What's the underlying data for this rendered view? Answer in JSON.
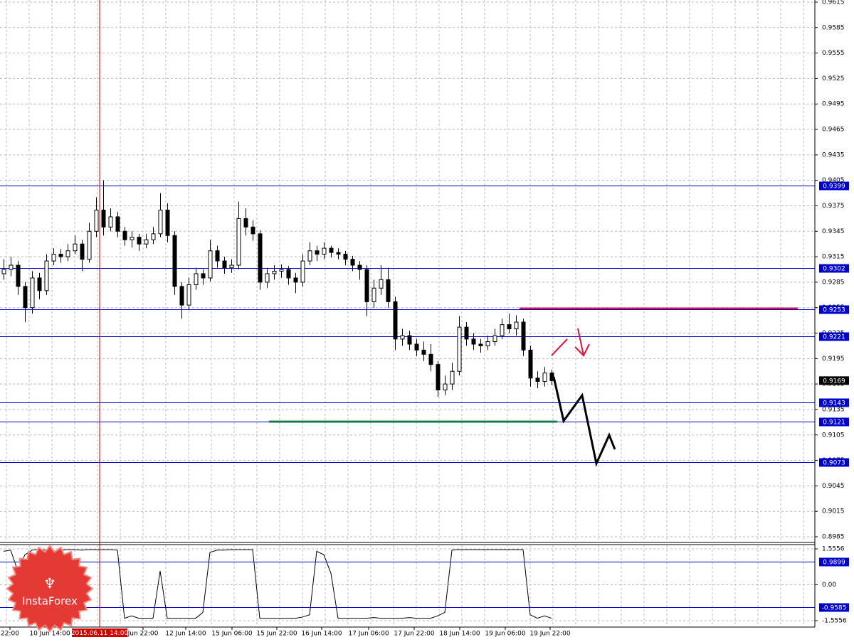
{
  "chart_data": {
    "type": "candlestick",
    "logo": "InstaForex",
    "cursor_label": "2015.06.11 14:00",
    "categories": [
      "22:00",
      "10 Jun 14:00",
      "Jun 22:00",
      "12 Jun 14:00",
      "15 Jun 06:00",
      "15 Jun 22:00",
      "16 Jun 14:00",
      "17 Jun 06:00",
      "17 Jun 22:00",
      "18 Jun 14:00",
      "19 Jun 06:00",
      "19 Jun 22:00"
    ],
    "ylim": [
      0.8985,
      0.9615
    ],
    "yticks": [
      0.9615,
      0.9585,
      0.9555,
      0.9525,
      0.9495,
      0.9465,
      0.9435,
      0.9405,
      0.9375,
      0.9345,
      0.9315,
      0.9285,
      0.9255,
      0.9225,
      0.9195,
      0.9165,
      0.9135,
      0.9105,
      0.9075,
      0.9045,
      0.9015,
      0.8985
    ],
    "grid": true,
    "levels": [
      0.9399,
      0.9302,
      0.9253,
      0.9221,
      0.9143,
      0.9121,
      0.9073
    ],
    "level_color": "#0000cd",
    "last_price": 0.9169,
    "open": [
      0.9295,
      0.93,
      0.9305,
      0.928,
      0.9255,
      0.929,
      0.9275,
      0.931,
      0.9318,
      0.9315,
      0.9322,
      0.933,
      0.9312,
      0.9345,
      0.937,
      0.935,
      0.9362,
      0.9345,
      0.9335,
      0.9338,
      0.933,
      0.9335,
      0.9342,
      0.937,
      0.934,
      0.928,
      0.9258,
      0.9282,
      0.9295,
      0.929,
      0.9322,
      0.931,
      0.9302,
      0.9305,
      0.936,
      0.935,
      0.9342,
      0.9285,
      0.9295,
      0.9298,
      0.93,
      0.929,
      0.9285,
      0.931,
      0.9322,
      0.9318,
      0.9325,
      0.932,
      0.9318,
      0.9312,
      0.9305,
      0.93,
      0.9262,
      0.9278,
      0.9288,
      0.9262,
      0.9218,
      0.9222,
      0.9212,
      0.9205,
      0.92,
      0.9188,
      0.9158,
      0.9165,
      0.918,
      0.9232,
      0.9218,
      0.9212,
      0.921,
      0.9215,
      0.9222,
      0.9235,
      0.923,
      0.9238,
      0.9205,
      0.9172,
      0.9168,
      0.9178
    ],
    "high": [
      0.9312,
      0.9315,
      0.931,
      0.9285,
      0.9298,
      0.9296,
      0.9318,
      0.9325,
      0.9324,
      0.933,
      0.934,
      0.9335,
      0.9355,
      0.9385,
      0.9405,
      0.9372,
      0.9368,
      0.935,
      0.9345,
      0.9342,
      0.9342,
      0.935,
      0.939,
      0.9378,
      0.9345,
      0.9285,
      0.929,
      0.9302,
      0.93,
      0.9335,
      0.9328,
      0.9315,
      0.9312,
      0.938,
      0.9372,
      0.9358,
      0.9346,
      0.9302,
      0.9305,
      0.9306,
      0.9304,
      0.9296,
      0.9318,
      0.9332,
      0.9328,
      0.9332,
      0.9328,
      0.9325,
      0.9322,
      0.9316,
      0.931,
      0.9305,
      0.9288,
      0.9305,
      0.9302,
      0.9268,
      0.923,
      0.9228,
      0.9218,
      0.9215,
      0.9212,
      0.9192,
      0.9175,
      0.919,
      0.9245,
      0.9238,
      0.9225,
      0.9218,
      0.9222,
      0.923,
      0.9242,
      0.9248,
      0.9246,
      0.9242,
      0.921,
      0.918,
      0.9185,
      0.9182
    ],
    "low": [
      0.9288,
      0.9292,
      0.927,
      0.9238,
      0.9248,
      0.9265,
      0.927,
      0.9305,
      0.9308,
      0.931,
      0.9318,
      0.9298,
      0.9308,
      0.9338,
      0.934,
      0.9345,
      0.9338,
      0.9328,
      0.9326,
      0.9322,
      0.9325,
      0.933,
      0.9338,
      0.9332,
      0.927,
      0.9242,
      0.9252,
      0.9276,
      0.9282,
      0.9286,
      0.9302,
      0.9295,
      0.9296,
      0.93,
      0.934,
      0.9334,
      0.9276,
      0.9278,
      0.9288,
      0.929,
      0.9282,
      0.9272,
      0.928,
      0.9305,
      0.931,
      0.9312,
      0.9314,
      0.9312,
      0.9305,
      0.9298,
      0.9288,
      0.9245,
      0.9255,
      0.927,
      0.9255,
      0.9205,
      0.921,
      0.9205,
      0.9198,
      0.9192,
      0.918,
      0.915,
      0.9152,
      0.9158,
      0.9175,
      0.921,
      0.9205,
      0.9202,
      0.9205,
      0.921,
      0.9218,
      0.9225,
      0.9222,
      0.9198,
      0.9162,
      0.916,
      0.9162,
      0.9164
    ],
    "close": [
      0.93,
      0.9305,
      0.928,
      0.9255,
      0.929,
      0.9275,
      0.931,
      0.9318,
      0.9315,
      0.9322,
      0.933,
      0.9312,
      0.9345,
      0.937,
      0.935,
      0.9362,
      0.9345,
      0.9335,
      0.9338,
      0.933,
      0.9335,
      0.9342,
      0.937,
      0.934,
      0.928,
      0.9258,
      0.9282,
      0.9295,
      0.929,
      0.9322,
      0.931,
      0.9302,
      0.9305,
      0.936,
      0.935,
      0.9342,
      0.9285,
      0.9295,
      0.9298,
      0.93,
      0.929,
      0.9285,
      0.931,
      0.9322,
      0.9318,
      0.9325,
      0.932,
      0.9318,
      0.9312,
      0.9305,
      0.93,
      0.9262,
      0.9278,
      0.9288,
      0.9262,
      0.9218,
      0.9222,
      0.9212,
      0.9205,
      0.92,
      0.9188,
      0.9158,
      0.9165,
      0.918,
      0.9232,
      0.9218,
      0.9212,
      0.921,
      0.9215,
      0.9222,
      0.9235,
      0.923,
      0.9238,
      0.9205,
      0.9172,
      0.9168,
      0.9178,
      0.9169
    ],
    "indicator": {
      "ylim": [
        -1.5556,
        1.5556
      ],
      "yticks": [
        1.5556,
        {
          "value": 0,
          "label": "0.00"
        },
        -1.5556
      ],
      "levels": [
        0.9899,
        -0.9585
      ],
      "values": [
        1.45,
        1.5,
        0.6,
        1.3,
        1.5,
        1.52,
        1.5,
        1.45,
        1.5,
        1.52,
        1.52,
        1.5,
        1.52,
        1.52,
        1.52,
        1.52,
        1.5,
        -1.45,
        -1.35,
        -1.45,
        -1.45,
        -1.45,
        0.6,
        -1.45,
        -1.45,
        -1.45,
        -1.45,
        -1.45,
        -1.2,
        1.4,
        1.5,
        1.5,
        1.52,
        1.52,
        1.52,
        1.52,
        -1.45,
        -1.45,
        -1.45,
        -1.45,
        -1.45,
        -1.45,
        -1.4,
        -1.3,
        1.45,
        1.3,
        0.5,
        -1.45,
        -1.45,
        -1.45,
        -1.45,
        -1.45,
        -1.42,
        -1.45,
        -1.45,
        -1.45,
        -1.45,
        -1.42,
        -1.45,
        -1.45,
        -1.45,
        -1.35,
        -1.2,
        1.5,
        1.52,
        1.52,
        1.52,
        1.52,
        1.52,
        1.52,
        1.52,
        1.52,
        1.52,
        1.52,
        -1.3,
        -1.45,
        -1.35,
        -1.45
      ]
    }
  }
}
